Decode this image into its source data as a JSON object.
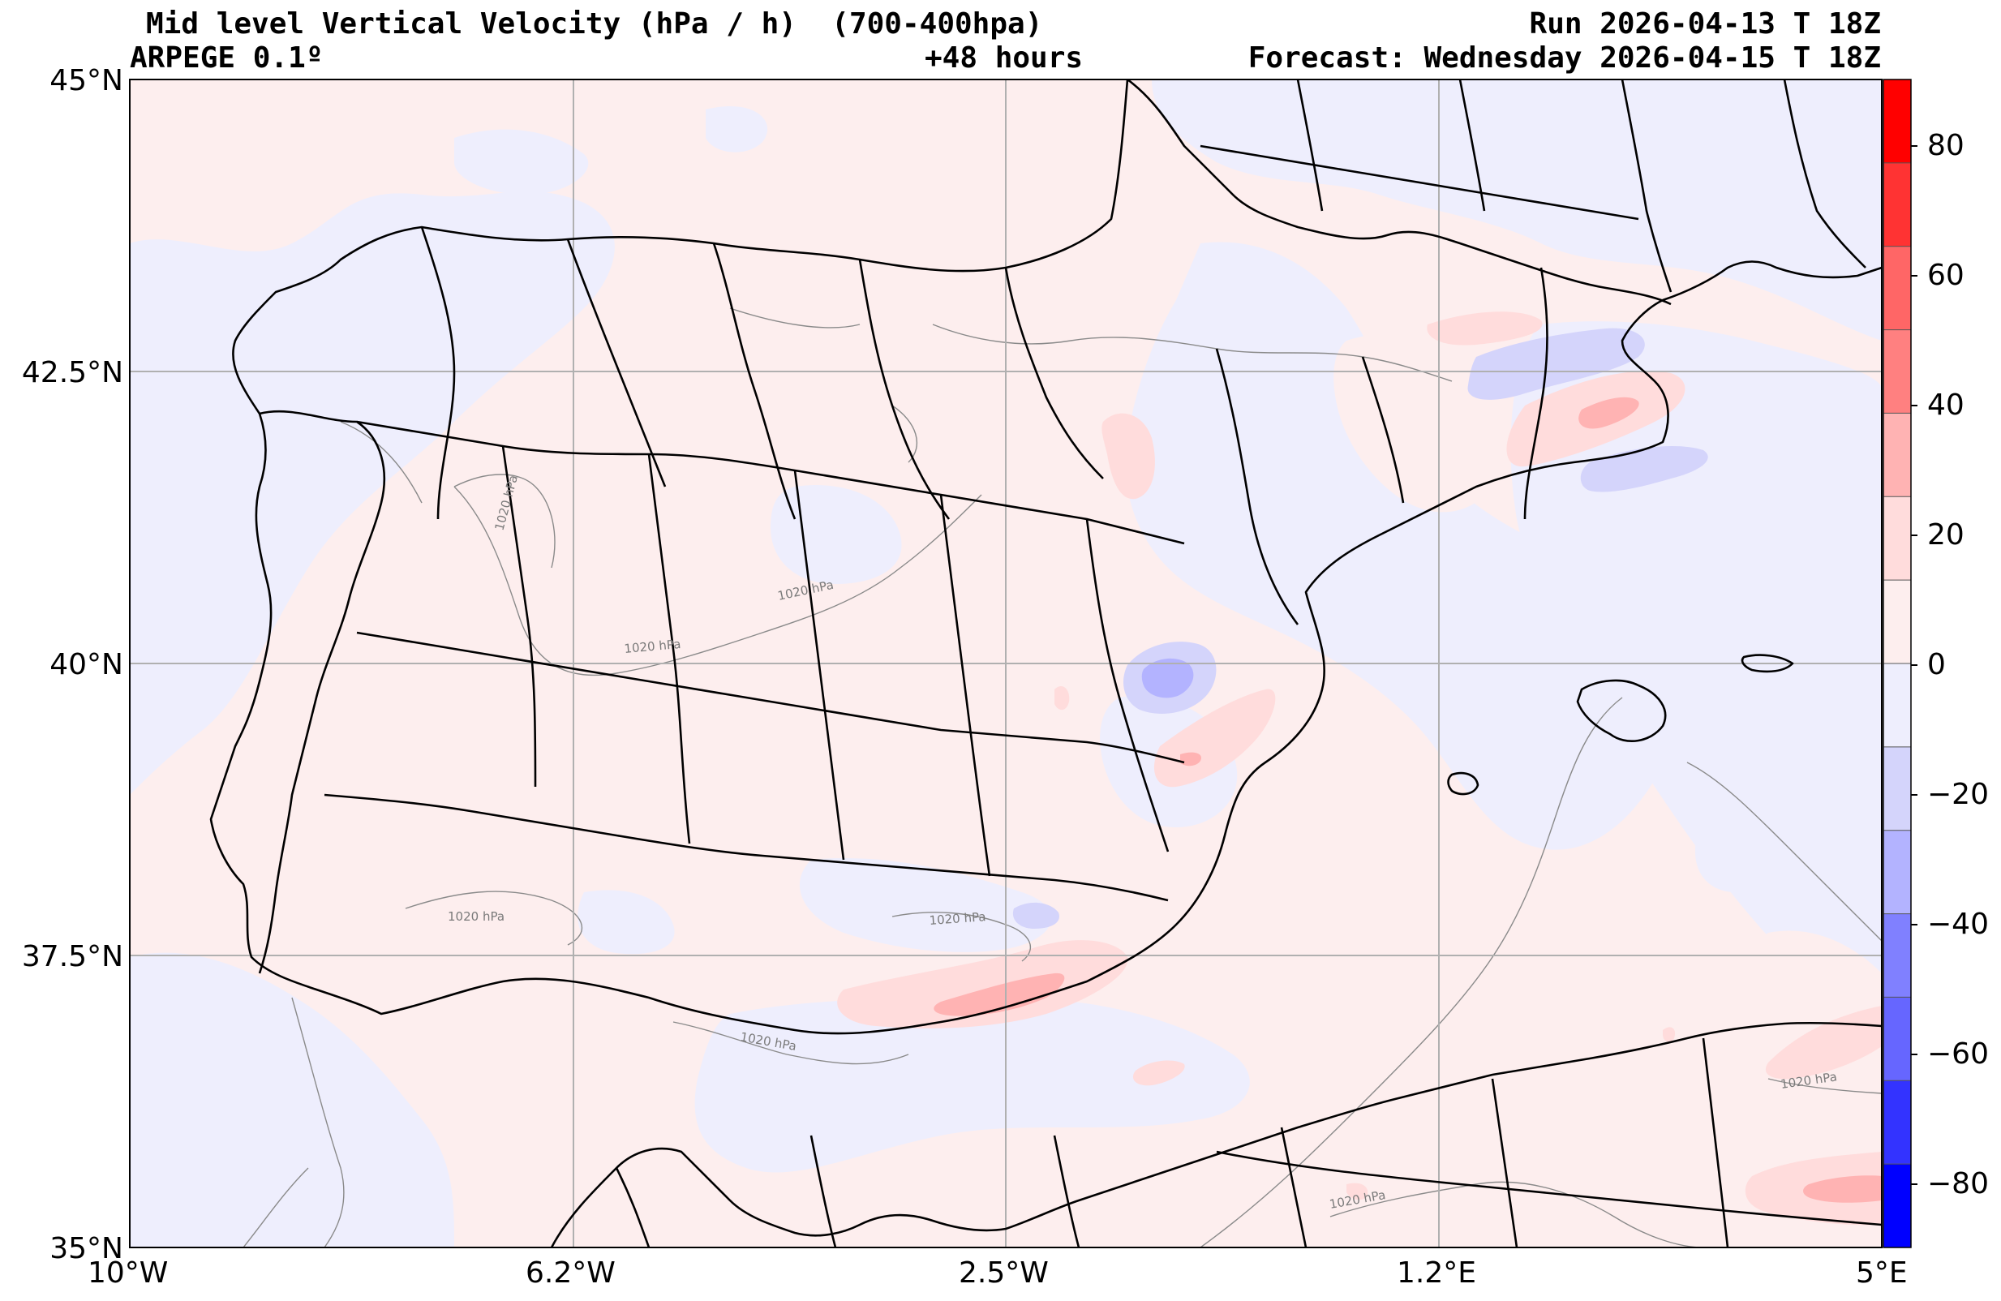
{
  "header": {
    "title_line1": "Mid level Vertical Velocity (hPa / h)  (700-400hpa)",
    "model": "ARPEGE 0.1º",
    "lead_time": "+48 hours",
    "run": "Run 2026-04-13 T 18Z",
    "forecast": "Forecast: Wednesday 2026-04-15 T 18Z"
  },
  "axes": {
    "lat_labels": [
      "45°N",
      "42.5°N",
      "40°N",
      "37.5°N",
      "35°N"
    ],
    "lon_labels": [
      "10°W",
      "6.2°W",
      "2.5°W",
      "1.2°E",
      "5°E"
    ]
  },
  "colorbar": {
    "ticks": [
      "80",
      "60",
      "40",
      "20",
      "0",
      "−20",
      "−40",
      "−60",
      "−80"
    ],
    "levels_colors": [
      "#ff0000",
      "#ff3333",
      "#ff6666",
      "#ff8080",
      "#ffb3b3",
      "#ffdcdc",
      "#fdeeee",
      "#eeeefd",
      "#d4d4fb",
      "#b3b3ff",
      "#8080ff",
      "#6666ff",
      "#3333ff",
      "#0000ff"
    ]
  },
  "isobar_labels": [
    "1020 hPa",
    "1020 hPa",
    "1020 hPa",
    "1020 hPa",
    "1020 hPa",
    "1020 hPa",
    "1020 hPa",
    "1020 hPa"
  ],
  "colors": {
    "background_positive": "#fdeeee",
    "background_negative": "#eeeefd",
    "grid": "#b0b0b0",
    "borders": "#000000",
    "isobars": "#8a8a8a"
  }
}
